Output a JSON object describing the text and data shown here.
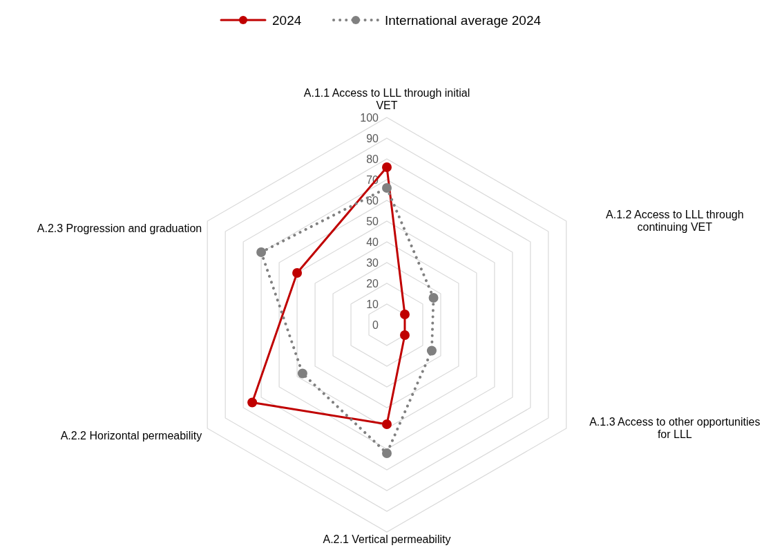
{
  "chart_data": {
    "type": "radar",
    "categories": [
      "A.1.1 Access to LLL through initial VET",
      "A.1.2 Access to LLL through continuing VET",
      "A.1.3 Access to other opportunities for LLL",
      "A.2.1 Vertical permeability",
      "A.2.2 Horizontal permeability",
      "A.2.3 Progression and graduation"
    ],
    "series": [
      {
        "name": "2024",
        "color": "#c00000",
        "values": [
          76,
          10,
          10,
          48,
          75,
          50
        ],
        "line_style": "solid"
      },
      {
        "name": "International average 2024",
        "color": "#808080",
        "values": [
          66,
          26,
          25,
          62,
          47,
          70
        ],
        "line_style": "dotted"
      }
    ],
    "ylim": [
      0,
      100
    ],
    "yticks": [
      0,
      10,
      20,
      30,
      40,
      50,
      60,
      70,
      80,
      90,
      100
    ],
    "grid": true,
    "legend": "top",
    "marker": "circle"
  }
}
